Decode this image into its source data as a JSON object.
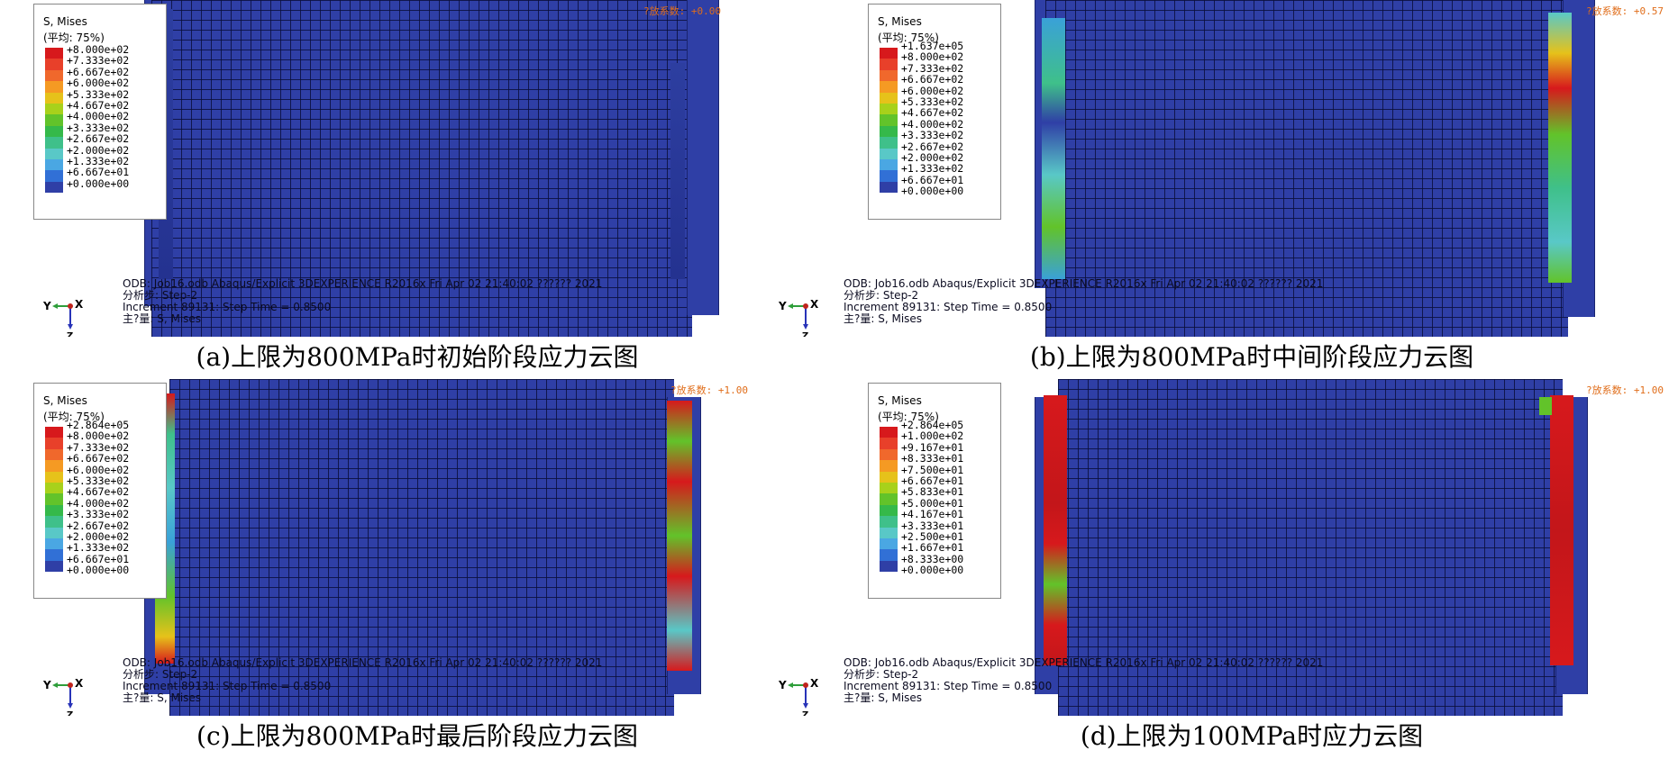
{
  "common": {
    "legend_title_1": "S, Mises",
    "legend_title_2": "(平均: 75%)",
    "info_line_1": "ODB: Job16.odb    Abaqus/Explicit 3DEXPERIENCE R2016x    Fri Apr 02 21:40:02 ?????? 2021",
    "info_line_2": "分析步: Step-2",
    "info_line_3": "Increment     89131: Step Time =    0.8500",
    "info_line_4": "主?量: S, Mises",
    "axis_y": "Y",
    "axis_x": "X",
    "axis_z": "Z"
  },
  "panels": [
    {
      "id": "a",
      "caption": "(a)上限为800MPa时初始阶段应力云图",
      "factor": "?放系数: +0.00",
      "legend_values": [
        "+8.000e+02",
        "+7.333e+02",
        "+6.667e+02",
        "+6.000e+02",
        "+5.333e+02",
        "+4.667e+02",
        "+4.000e+02",
        "+3.333e+02",
        "+2.667e+02",
        "+2.000e+02",
        "+1.333e+02",
        "+6.667e+01",
        "+0.000e+00"
      ],
      "state": "initial"
    },
    {
      "id": "b",
      "caption": "(b)上限为800MPa时中间阶段应力云图",
      "factor": "?放系数: +0.57",
      "legend_values": [
        "+1.637e+05",
        "+8.000e+02",
        "+7.333e+02",
        "+6.667e+02",
        "+6.000e+02",
        "+5.333e+02",
        "+4.667e+02",
        "+4.000e+02",
        "+3.333e+02",
        "+2.667e+02",
        "+2.000e+02",
        "+1.333e+02",
        "+6.667e+01",
        "+0.000e+00"
      ],
      "state": "middle"
    },
    {
      "id": "c",
      "caption": "(c)上限为800MPa时最后阶段应力云图",
      "factor": "?放系数: +1.00",
      "legend_values": [
        "+2.864e+05",
        "+8.000e+02",
        "+7.333e+02",
        "+6.667e+02",
        "+6.000e+02",
        "+5.333e+02",
        "+4.667e+02",
        "+4.000e+02",
        "+3.333e+02",
        "+2.667e+02",
        "+2.000e+02",
        "+1.333e+02",
        "+6.667e+01",
        "+0.000e+00"
      ],
      "state": "final"
    },
    {
      "id": "d",
      "caption": "(d)上限为100MPa时应力云图",
      "factor": "?放系数: +1.00",
      "legend_values": [
        "+2.864e+05",
        "+1.000e+02",
        "+9.167e+01",
        "+8.333e+01",
        "+7.500e+01",
        "+6.667e+01",
        "+5.833e+01",
        "+5.000e+01",
        "+4.167e+01",
        "+3.333e+01",
        "+2.500e+01",
        "+1.667e+01",
        "+8.333e+00",
        "+0.000e+00"
      ],
      "state": "low-limit"
    }
  ],
  "colors": {
    "legend_scale": [
      "#d7191c",
      "#e8402a",
      "#f0682c",
      "#f59a23",
      "#e6c21a",
      "#a8d11b",
      "#62c32a",
      "#35b94a",
      "#3fc08a",
      "#59c8c7",
      "#4aa7e3",
      "#3170d6",
      "#2f3fa6"
    ],
    "mesh_blue": "#2f3fa6",
    "factor_text": "#e06d1a"
  }
}
